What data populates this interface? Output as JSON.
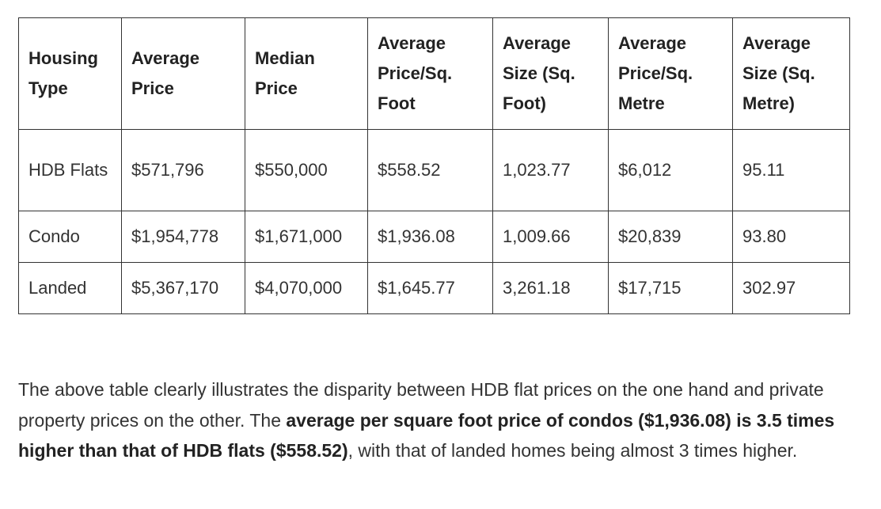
{
  "table": {
    "headers": [
      "Housing Type",
      "Average Price",
      "Median Price",
      "Average Price/Sq. Foot",
      "Average Size (Sq. Foot)",
      "Average Price/Sq. Metre",
      "Average Size (Sq. Metre)"
    ],
    "rows": [
      [
        "HDB Flats",
        "$571,796",
        "$550,000",
        "$558.52",
        "1,023.77",
        "$6,012",
        "95.11"
      ],
      [
        "Condo",
        "$1,954,778",
        "$1,671,000",
        "$1,936.08",
        "1,009.66",
        "$20,839",
        "93.80"
      ],
      [
        "Landed",
        "$5,367,170",
        "$4,070,000",
        "$1,645.77",
        "3,261.18",
        "$17,715",
        "302.97"
      ]
    ]
  },
  "paragraph": {
    "intro": "The above table clearly illustrates the disparity between HDB flat prices on the one hand and private property prices on the other. The ",
    "emphasis": "average per square foot price of condos ($1,936.08) is 3.5 times higher than that of HDB flats ($558.52)",
    "outro": ", with that of landed homes being almost 3 times higher."
  }
}
